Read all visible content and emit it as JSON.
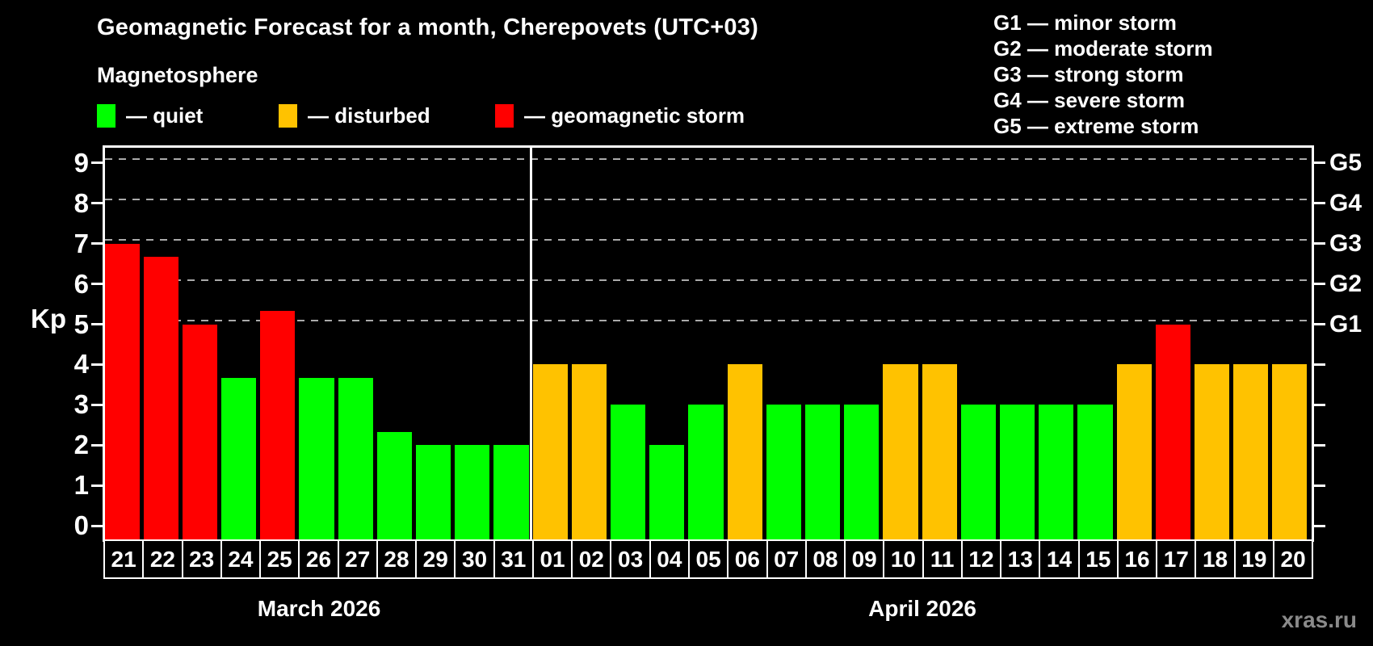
{
  "title": "Geomagnetic Forecast for a month, Cherepovets (UTC+03)",
  "subtitle": "Magnetosphere",
  "watermark": "xras.ru",
  "colors": {
    "quiet": "#00ff00",
    "disturbed": "#ffc200",
    "storm": "#ff0000",
    "grid": "#aaaaaa",
    "axis": "#ffffff",
    "watermark": "#8a8a8a"
  },
  "legend": {
    "items": [
      {
        "key": "quiet",
        "label": "— quiet"
      },
      {
        "key": "disturbed",
        "label": "— disturbed"
      },
      {
        "key": "storm",
        "label": "— geomagnetic storm"
      }
    ]
  },
  "g_legend": {
    "items": [
      {
        "label": "G1 — minor storm"
      },
      {
        "label": "G2 — moderate storm"
      },
      {
        "label": "G3 — strong storm"
      },
      {
        "label": "G4 — severe storm"
      },
      {
        "label": "G5 — extreme storm"
      }
    ]
  },
  "y_axis": {
    "label": "Kp",
    "ticks": [
      0,
      1,
      2,
      3,
      4,
      5,
      6,
      7,
      8,
      9
    ]
  },
  "right_axis": {
    "labels": [
      {
        "value": 5,
        "label": "G1"
      },
      {
        "value": 6,
        "label": "G2"
      },
      {
        "value": 7,
        "label": "G3"
      },
      {
        "value": 8,
        "label": "G4"
      },
      {
        "value": 9,
        "label": "G5"
      }
    ]
  },
  "chart_data": {
    "type": "bar",
    "title": "Geomagnetic Forecast for a month, Cherepovets (UTC+03)",
    "xlabel": "",
    "ylabel": "Kp",
    "ylim": [
      0,
      9.4
    ],
    "grid": "dashed horizontal at G levels",
    "gridlines_at": [
      5,
      6,
      7,
      8,
      9
    ],
    "categories": [
      "21",
      "22",
      "23",
      "24",
      "25",
      "26",
      "27",
      "28",
      "29",
      "30",
      "31",
      "01",
      "02",
      "03",
      "04",
      "05",
      "06",
      "07",
      "08",
      "09",
      "10",
      "11",
      "12",
      "13",
      "14",
      "15",
      "16",
      "17",
      "18",
      "19",
      "20"
    ],
    "values": [
      7,
      6.67,
      5,
      3.67,
      5.33,
      3.67,
      3.67,
      2.33,
      2,
      2,
      2,
      4,
      4,
      3,
      2,
      3,
      4,
      3,
      3,
      3,
      4,
      4,
      3,
      3,
      3,
      3,
      4,
      5,
      4,
      4,
      4
    ],
    "states": [
      "storm",
      "storm",
      "storm",
      "quiet",
      "storm",
      "quiet",
      "quiet",
      "quiet",
      "quiet",
      "quiet",
      "quiet",
      "disturbed",
      "disturbed",
      "quiet",
      "quiet",
      "quiet",
      "disturbed",
      "quiet",
      "quiet",
      "quiet",
      "disturbed",
      "disturbed",
      "quiet",
      "quiet",
      "quiet",
      "quiet",
      "disturbed",
      "storm",
      "disturbed",
      "disturbed",
      "disturbed"
    ],
    "month_split_index": 11,
    "months": [
      {
        "label": "March 2026",
        "days": 11
      },
      {
        "label": "April 2026",
        "days": 20
      }
    ]
  }
}
